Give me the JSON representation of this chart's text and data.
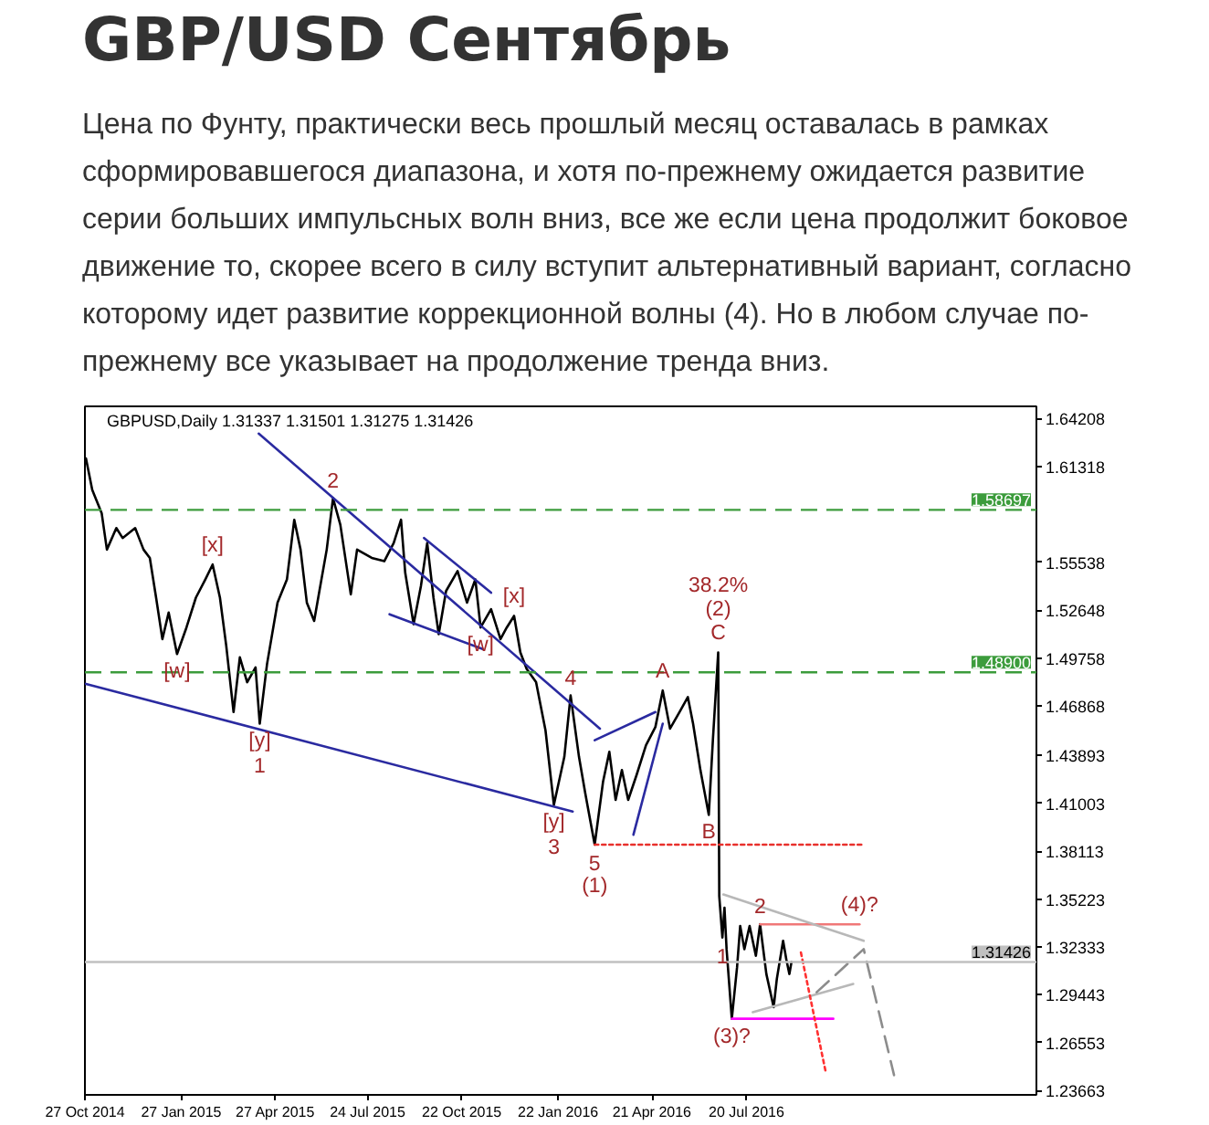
{
  "chart_data": {
    "type": "line",
    "title": "GBP/USD Сентябрь",
    "subtitle": "Цена по Фунту, практически весь прошлый месяц оставалась в рамках сформировавшегося диапазона, и хотя по-прежнему ожидается развитие серии больших импульсных волн вниз, все же если цена продолжит боковое движение то, скорее всего в силу вступит альтернативный вариант, согласно которому идет развитие коррекционной волны (4). Но в любом случае по-прежнему все указывает на продолжение тренда вниз.",
    "xlim": [
      "2014-10-27",
      "2017-04-23"
    ],
    "xticks": [
      {
        "value": "2014-10-27",
        "label": "27 Oct 2014"
      },
      {
        "value": "2015-01-27",
        "label": "27 Jan 2015"
      },
      {
        "value": "2015-04-27",
        "label": "27 Apr 2015"
      },
      {
        "value": "2015-07-24",
        "label": "24 Jul 2015"
      },
      {
        "value": "2015-10-22",
        "label": "22 Oct 2015"
      },
      {
        "value": "2016-01-22",
        "label": "22 Jan 2016"
      },
      {
        "value": "2016-04-21",
        "label": "21 Apr 2016"
      },
      {
        "value": "2016-07-20",
        "label": "20 Jul 2016"
      }
    ],
    "ylim": [
      1.2341,
      1.6494
    ],
    "yticks": [
      1.23663,
      1.26553,
      1.29443,
      1.32333,
      1.35223,
      1.38113,
      1.41003,
      1.43893,
      1.46868,
      1.49758,
      1.52648,
      1.55538,
      1.61318,
      1.64208
    ],
    "series": [
      {
        "color": "#000000",
        "x": [
          "2014-10-28",
          "2014-11-03",
          "2014-11-12",
          "2014-11-17",
          "2014-11-26",
          "2014-12-02",
          "2014-12-14",
          "2014-12-22",
          "2014-12-28",
          "2015-01-03",
          "2015-01-09",
          "2015-01-15",
          "2015-01-23",
          "2015-02-01",
          "2015-02-10",
          "2015-02-19",
          "2015-02-26",
          "2015-03-05",
          "2015-03-11",
          "2015-03-18",
          "2015-03-24",
          "2015-03-31",
          "2015-04-08",
          "2015-04-12",
          "2015-04-19",
          "2015-04-29",
          "2015-05-08",
          "2015-05-15",
          "2015-05-21",
          "2015-05-27",
          "2015-06-03",
          "2015-06-08",
          "2015-06-15",
          "2015-06-21",
          "2015-06-28",
          "2015-07-08",
          "2015-07-14",
          "2015-07-28",
          "2015-08-09",
          "2015-08-18",
          "2015-08-25",
          "2015-08-29",
          "2015-09-06",
          "2015-09-13",
          "2015-09-19",
          "2015-09-25",
          "2015-09-30",
          "2015-10-07",
          "2015-10-18",
          "2015-10-27",
          "2015-11-04",
          "2015-11-09",
          "2015-11-19",
          "2015-11-28",
          "2015-12-04",
          "2015-12-11",
          "2015-12-17",
          "2015-12-23",
          "2016-01-01",
          "2016-01-10",
          "2016-01-18",
          "2016-01-28",
          "2016-02-03",
          "2016-02-11",
          "2016-02-17",
          "2016-02-26",
          "2016-03-05",
          "2016-03-11",
          "2016-03-17",
          "2016-03-23",
          "2016-03-29",
          "2016-04-06",
          "2016-04-15",
          "2016-04-24",
          "2016-05-01",
          "2016-05-08",
          "2016-05-17",
          "2016-05-25",
          "2016-05-30",
          "2016-06-06",
          "2016-06-14",
          "2016-06-18",
          "2016-06-23",
          "2016-06-24",
          "2016-06-27",
          "2016-06-29",
          "2016-07-01",
          "2016-07-06",
          "2016-07-11",
          "2016-07-14",
          "2016-07-18",
          "2016-07-23",
          "2016-07-29",
          "2016-08-02",
          "2016-08-08",
          "2016-08-15",
          "2016-08-18",
          "2016-08-24",
          "2016-08-27",
          "2016-08-30",
          "2016-09-01"
        ],
        "values": [
          1.618,
          1.599,
          1.585,
          1.563,
          1.576,
          1.57,
          1.576,
          1.563,
          1.558,
          1.534,
          1.509,
          1.525,
          1.5,
          1.516,
          1.534,
          1.545,
          1.554,
          1.534,
          1.505,
          1.465,
          1.498,
          1.483,
          1.492,
          1.458,
          1.494,
          1.531,
          1.545,
          1.581,
          1.563,
          1.531,
          1.52,
          1.538,
          1.563,
          1.594,
          1.578,
          1.536,
          1.563,
          1.558,
          1.556,
          1.567,
          1.581,
          1.549,
          1.518,
          1.541,
          1.567,
          1.534,
          1.512,
          1.538,
          1.55,
          1.531,
          1.545,
          1.516,
          1.527,
          1.509,
          1.516,
          1.523,
          1.501,
          1.491,
          1.483,
          1.454,
          1.409,
          1.438,
          1.475,
          1.438,
          1.416,
          1.385,
          1.423,
          1.441,
          1.412,
          1.43,
          1.412,
          1.427,
          1.445,
          1.456,
          1.478,
          1.455,
          1.465,
          1.474,
          1.458,
          1.43,
          1.403,
          1.449,
          1.501,
          1.354,
          1.329,
          1.347,
          1.322,
          1.28,
          1.311,
          1.336,
          1.322,
          1.336,
          1.318,
          1.337,
          1.307,
          1.287,
          1.304,
          1.327,
          1.316,
          1.307,
          1.31426
        ]
      },
      {
        "color": "#2a2aa0",
        "x": [
          "2015-04-11",
          "2016-03-02"
        ],
        "values": [
          1.633,
          1.455
        ]
      },
      {
        "color": "#2a2aa0",
        "x": [
          "2014-10-28",
          "2016-02-05"
        ],
        "values": [
          1.482,
          1.405
        ]
      },
      {
        "color": "#2a2aa0",
        "x": [
          "2015-09-16",
          "2015-11-19"
        ],
        "values": [
          1.57,
          1.537
        ]
      },
      {
        "color": "#2a2aa0",
        "x": [
          "2015-08-14",
          "2015-11-11"
        ],
        "values": [
          1.524,
          1.503
        ]
      },
      {
        "color": "#2a2aa0",
        "x": [
          "2016-02-26",
          "2016-04-24"
        ],
        "values": [
          1.448,
          1.465
        ]
      },
      {
        "color": "#2a2aa0",
        "x": [
          "2016-04-03",
          "2016-05-01"
        ],
        "values": [
          1.391,
          1.458
        ]
      },
      {
        "color": "#e8302c",
        "line_style": "dotted",
        "x": [
          "2016-02-26",
          "2016-11-09"
        ],
        "values": [
          1.385,
          1.385
        ]
      },
      {
        "color": "#f07878",
        "x": [
          "2016-08-02",
          "2016-11-05"
        ],
        "values": [
          1.337,
          1.337
        ]
      },
      {
        "color": "#ff00ff",
        "x": [
          "2016-07-06",
          "2016-10-11"
        ],
        "values": [
          1.28,
          1.28
        ]
      },
      {
        "color": "#b8b8b8",
        "x": [
          "2016-06-28",
          "2016-11-09"
        ],
        "values": [
          1.355,
          1.327
        ]
      },
      {
        "color": "#b8b8b8",
        "x": [
          "2016-07-26",
          "2016-10-30"
        ],
        "values": [
          1.284,
          1.301
        ]
      },
      {
        "color": "#8c8c8c",
        "line_style": "dashed",
        "x": [
          "2016-09-25",
          "2016-11-09",
          "2016-12-08"
        ],
        "values": [
          1.296,
          1.322,
          1.246
        ]
      },
      {
        "color": "#ff3030",
        "line_style": "dotted",
        "x": [
          "2016-09-10",
          "2016-10-04"
        ],
        "values": [
          1.32,
          1.247
        ]
      }
    ],
    "ref_lines": [
      {
        "axis": "y",
        "value": 1.58697,
        "label": "1.58697",
        "color": "#3c9c3c",
        "line_style": "dashed"
      },
      {
        "axis": "y",
        "value": 1.489,
        "label": "1.48900",
        "color": "#3c9c3c",
        "line_style": "dashed"
      },
      {
        "axis": "y",
        "value": 1.31426,
        "label": "1.31426",
        "color": "#c0c0c0",
        "line_style": "solid"
      }
    ],
    "annotations": [
      "GBPUSD,Daily 1.31337 1.31501 1.31275 1.31426",
      {
        "text": "2",
        "x": "2015-06-21",
        "y": 1.594
      },
      {
        "text": "[x]",
        "x": "2015-02-26",
        "y": 1.554
      },
      {
        "text": "[w]",
        "x": "2015-01-23",
        "y": 1.5
      },
      {
        "text": "[y]",
        "x": "2015-04-12",
        "y": 1.458
      },
      {
        "text": "1",
        "x": "2015-04-12",
        "y": 1.458
      },
      {
        "text": "[w]",
        "x": "2015-11-09",
        "y": 1.516
      },
      {
        "text": "[x]",
        "x": "2015-12-11",
        "y": 1.523
      },
      {
        "text": "[y]",
        "x": "2016-01-18",
        "y": 1.409
      },
      {
        "text": "3",
        "x": "2016-01-18",
        "y": 1.409
      },
      {
        "text": "4",
        "x": "2016-02-03",
        "y": 1.475
      },
      {
        "text": "5",
        "x": "2016-02-26",
        "y": 1.385
      },
      {
        "text": "(1)",
        "x": "2016-02-26",
        "y": 1.385
      },
      {
        "text": "A",
        "x": "2016-05-01",
        "y": 1.478
      },
      {
        "text": "B",
        "x": "2016-06-14",
        "y": 1.403
      },
      {
        "text": "C",
        "x": "2016-06-23",
        "y": 1.501
      },
      {
        "text": "(2)",
        "x": "2016-06-23",
        "y": 1.501
      },
      {
        "text": "38.2%",
        "x": "2016-06-23",
        "y": 1.501
      },
      {
        "text": "1",
        "x": "2016-06-27",
        "y": 1.329
      },
      {
        "text": "2",
        "x": "2016-08-02",
        "y": 1.337
      },
      {
        "text": "(3)?",
        "x": "2016-07-06",
        "y": 1.28
      },
      {
        "text": "(4)?",
        "x": "2016-11-05",
        "y": 1.337
      }
    ]
  }
}
